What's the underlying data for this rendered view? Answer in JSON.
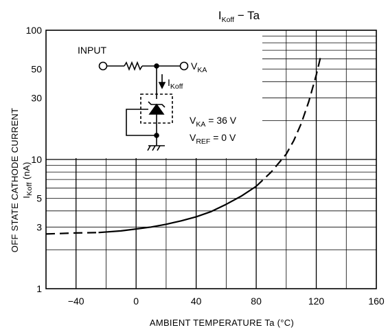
{
  "chart_data": {
    "type": "line",
    "title": {
      "main": "I",
      "sub": "Koff",
      "rest": " − Ta"
    },
    "xlabel": "AMBIENT TEMPERATURE   Ta   (°C)",
    "ylabel": {
      "line1": "OFF STATE CATHODE CURRENT",
      "line2_main": "I",
      "line2_sub": "Koff",
      "line2_rest": "  (nA)"
    },
    "x_scale": "linear",
    "y_scale": "log",
    "xlim": [
      -60,
      160
    ],
    "ylim": [
      1,
      100
    ],
    "x_ticks": [
      {
        "value": -40,
        "label": "−40"
      },
      {
        "value": 0,
        "label": "0"
      },
      {
        "value": 40,
        "label": "40"
      },
      {
        "value": 80,
        "label": "80"
      },
      {
        "value": 120,
        "label": "120"
      },
      {
        "value": 160,
        "label": "160"
      }
    ],
    "y_ticks": [
      {
        "value": 1,
        "label": "1"
      },
      {
        "value": 3,
        "label": "3"
      },
      {
        "value": 5,
        "label": "5"
      },
      {
        "value": 10,
        "label": "10"
      },
      {
        "value": 30,
        "label": "30"
      },
      {
        "value": 50,
        "label": "50"
      },
      {
        "value": 100,
        "label": "100"
      }
    ],
    "grid": true,
    "series": [
      {
        "name": "",
        "style": "dashed",
        "x": [
          -60,
          -40,
          -25
        ],
        "y": [
          2.65,
          2.7,
          2.72
        ]
      },
      {
        "name": "",
        "style": "solid",
        "x": [
          -25,
          -10,
          0,
          10,
          20,
          30,
          40,
          50,
          60,
          70,
          80
        ],
        "y": [
          2.72,
          2.8,
          2.9,
          3.0,
          3.15,
          3.35,
          3.6,
          3.95,
          4.5,
          5.2,
          6.2
        ]
      },
      {
        "name": "",
        "style": "dashed",
        "x": [
          80,
          90,
          100,
          105,
          110,
          115,
          120,
          123
        ],
        "y": [
          6.2,
          8.0,
          11.0,
          14.0,
          19.0,
          28.0,
          45.0,
          63.0
        ]
      }
    ],
    "inset": {
      "input_label": "INPUT",
      "vka": {
        "main": "V",
        "sub": "KA"
      },
      "current": {
        "main": "I",
        "sub": "Koff"
      },
      "cond1": {
        "main": "V",
        "sub": "KA",
        "rest": " = 36 V"
      },
      "cond2": {
        "main": "V",
        "sub": "REF",
        "rest": " = 0 V"
      }
    }
  }
}
